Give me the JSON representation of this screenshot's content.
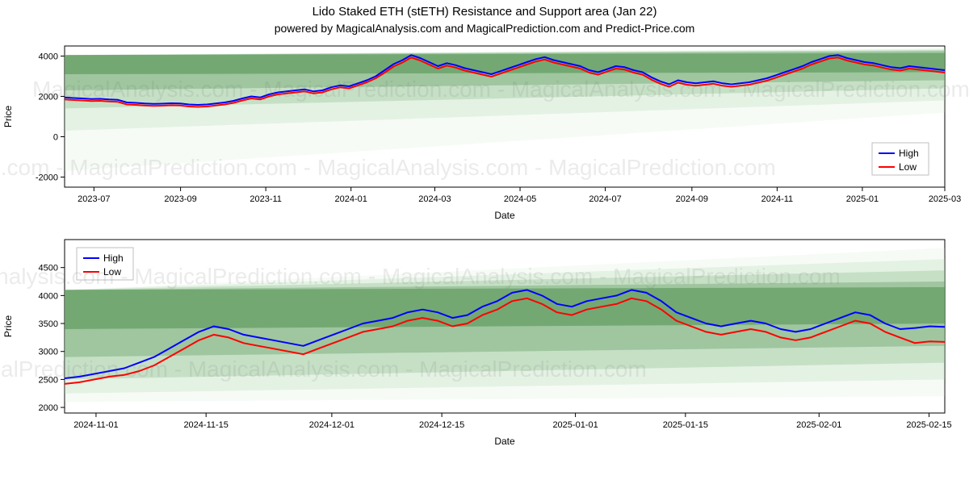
{
  "title": "Lido Staked ETH (stETH) Resistance and Support area (Jan 22)",
  "subtitle": "powered by MagicalAnalysis.com and MagicalPrediction.com and Predict-Price.com",
  "watermark": "MagicalAnalysis.com - MagicalPrediction.com - MagicalAnalysis.com - MagicalPrediction.com",
  "series_colors": {
    "high": "#0000ff",
    "low": "#ff0000"
  },
  "band_colors": [
    "#4f8f4f",
    "#6fa76f",
    "#8fbf8f",
    "#afd7af",
    "#cde8cd"
  ],
  "band_alpha": [
    0.55,
    0.45,
    0.35,
    0.25,
    0.18
  ],
  "background_color": "#ffffff",
  "legend": {
    "high": "High",
    "low": "Low"
  },
  "chart1": {
    "type": "line",
    "xlabel": "Date",
    "ylabel": "Price",
    "label_fontsize": 12,
    "ylim": [
      -2500,
      4500
    ],
    "yticks": [
      -2000,
      0,
      2000,
      4000
    ],
    "x_start": "2023-06-10",
    "x_end": "2025-03-01",
    "xticks": [
      "2023-07",
      "2023-09",
      "2023-11",
      "2024-01",
      "2024-03",
      "2024-05",
      "2024-07",
      "2024-09",
      "2024-11",
      "2025-01",
      "2025-03"
    ],
    "bands": [
      {
        "top0": 4050,
        "top1": 4150,
        "bot0": 3100,
        "bot1": 3200
      },
      {
        "top0": 4050,
        "top1": 4250,
        "bot0": 2300,
        "bot1": 2800
      },
      {
        "top0": 4050,
        "top1": 4300,
        "bot0": 1400,
        "bot1": 2400
      },
      {
        "top0": 4050,
        "top1": 4350,
        "bot0": 300,
        "bot1": 1800
      },
      {
        "top0": 4050,
        "top1": 4400,
        "bot0": -1700,
        "bot1": 1200
      }
    ],
    "n": 100,
    "high": [
      1950,
      1920,
      1900,
      1870,
      1880,
      1850,
      1830,
      1700,
      1680,
      1650,
      1630,
      1640,
      1660,
      1650,
      1600,
      1580,
      1600,
      1650,
      1700,
      1780,
      1900,
      2000,
      1950,
      2100,
      2200,
      2250,
      2300,
      2350,
      2250,
      2300,
      2450,
      2550,
      2500,
      2650,
      2800,
      3000,
      3300,
      3600,
      3800,
      4050,
      3900,
      3700,
      3500,
      3650,
      3550,
      3400,
      3300,
      3200,
      3100,
      3250,
      3400,
      3550,
      3700,
      3850,
      3950,
      3800,
      3700,
      3600,
      3500,
      3300,
      3200,
      3350,
      3500,
      3450,
      3300,
      3200,
      2950,
      2750,
      2600,
      2800,
      2700,
      2650,
      2700,
      2750,
      2650,
      2600,
      2650,
      2700,
      2800,
      2900,
      3050,
      3200,
      3350,
      3500,
      3700,
      3850,
      4000,
      4050,
      3900,
      3800,
      3700,
      3650,
      3550,
      3450,
      3400,
      3500,
      3450,
      3400,
      3350,
      3300
    ],
    "low": [
      1850,
      1820,
      1800,
      1770,
      1780,
      1750,
      1730,
      1600,
      1580,
      1550,
      1530,
      1540,
      1560,
      1550,
      1500,
      1480,
      1500,
      1550,
      1600,
      1680,
      1800,
      1900,
      1850,
      2000,
      2100,
      2150,
      2200,
      2250,
      2150,
      2200,
      2350,
      2450,
      2400,
      2550,
      2700,
      2900,
      3180,
      3480,
      3680,
      3930,
      3780,
      3580,
      3380,
      3530,
      3430,
      3280,
      3180,
      3080,
      2980,
      3130,
      3280,
      3430,
      3580,
      3730,
      3830,
      3680,
      3580,
      3480,
      3380,
      3180,
      3080,
      3230,
      3380,
      3330,
      3180,
      3080,
      2830,
      2630,
      2480,
      2680,
      2580,
      2530,
      2580,
      2630,
      2530,
      2480,
      2530,
      2580,
      2680,
      2780,
      2930,
      3080,
      3230,
      3380,
      3580,
      3730,
      3880,
      3930,
      3780,
      3680,
      3580,
      3530,
      3430,
      3330,
      3280,
      3380,
      3330,
      3280,
      3230,
      3180
    ]
  },
  "chart2": {
    "type": "line",
    "xlabel": "Date",
    "ylabel": "Price",
    "label_fontsize": 12,
    "ylim": [
      1900,
      5000
    ],
    "yticks": [
      2000,
      2500,
      3000,
      3500,
      4000,
      4500
    ],
    "x_start": "2024-10-28",
    "x_end": "2025-02-17",
    "xticks": [
      "2024-11-01",
      "2024-11-15",
      "2024-12-01",
      "2024-12-15",
      "2025-01-01",
      "2025-01-15",
      "2025-02-01",
      "2025-02-15"
    ],
    "bands": [
      {
        "top0": 4100,
        "top1": 4150,
        "bot0": 3400,
        "bot1": 3500
      },
      {
        "top0": 4100,
        "top1": 4250,
        "bot0": 2900,
        "bot1": 3100
      },
      {
        "top0": 4100,
        "top1": 4450,
        "bot0": 2500,
        "bot1": 2800
      },
      {
        "top0": 4100,
        "top1": 4650,
        "bot0": 2250,
        "bot1": 2500
      },
      {
        "top0": 4100,
        "top1": 4850,
        "bot0": 2100,
        "bot1": 2200
      }
    ],
    "n": 60,
    "high": [
      2520,
      2550,
      2600,
      2650,
      2700,
      2800,
      2900,
      3050,
      3200,
      3350,
      3450,
      3400,
      3300,
      3250,
      3200,
      3150,
      3100,
      3200,
      3300,
      3400,
      3500,
      3550,
      3600,
      3700,
      3750,
      3700,
      3600,
      3650,
      3800,
      3900,
      4050,
      4100,
      4000,
      3850,
      3800,
      3900,
      3950,
      4000,
      4100,
      4050,
      3900,
      3700,
      3600,
      3500,
      3450,
      3500,
      3550,
      3500,
      3400,
      3350,
      3400,
      3500,
      3600,
      3700,
      3650,
      3500,
      3400,
      3420,
      3450,
      3440
    ],
    "low": [
      2420,
      2450,
      2500,
      2550,
      2580,
      2650,
      2750,
      2900,
      3050,
      3200,
      3300,
      3250,
      3150,
      3100,
      3050,
      3000,
      2950,
      3050,
      3150,
      3250,
      3350,
      3400,
      3450,
      3550,
      3600,
      3550,
      3450,
      3500,
      3650,
      3750,
      3900,
      3950,
      3850,
      3700,
      3650,
      3750,
      3800,
      3850,
      3950,
      3900,
      3750,
      3550,
      3450,
      3350,
      3300,
      3350,
      3400,
      3350,
      3250,
      3200,
      3250,
      3350,
      3450,
      3550,
      3500,
      3350,
      3250,
      3150,
      3180,
      3170
    ]
  }
}
